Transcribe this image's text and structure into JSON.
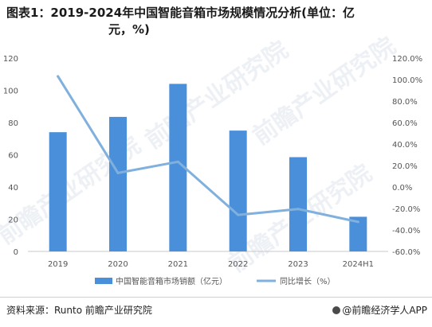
{
  "title_line1": "图表1：2019-2024年中国智能音箱市场规模情况分析(单位：亿",
  "title_line2": "元，%)",
  "watermark": "前瞻产业研究院",
  "source": "资料来源：Runto 前瞻产业研究院",
  "brand": "@前瞻经济学人APP",
  "colors": {
    "bar": "#4a8fd9",
    "line": "#7fb0de",
    "axis": "#c8c8c8",
    "text": "#555555"
  },
  "chart_data": {
    "type": "bar",
    "title": "图表1：2019-2024年中国智能音箱市场规模情况分析(单位：亿元，%)",
    "categories": [
      "2019",
      "2020",
      "2021",
      "2022",
      "2023",
      "2024H1"
    ],
    "y_ticks": [
      "0",
      "20",
      "40",
      "60",
      "80",
      "100",
      "120"
    ],
    "y2_ticks": [
      "-60.0%",
      "-40.0%",
      "-20.0%",
      "0.0%",
      "20.0%",
      "40.0%",
      "60.0%",
      "80.0%",
      "100.0%",
      "120.0%"
    ],
    "ylim": [
      0,
      120
    ],
    "y2lim": [
      -60,
      120
    ],
    "series": [
      {
        "name": "中国智能音箱市场销额（亿元）",
        "type": "bar",
        "axis": "left",
        "values": [
          74,
          83.5,
          104,
          75,
          58.5,
          21.5
        ]
      },
      {
        "name": "同比增长（%）",
        "type": "line",
        "axis": "right",
        "values": [
          103,
          13,
          23.5,
          -26,
          -20.5,
          -32.5
        ]
      }
    ],
    "legend_position": "bottom",
    "grid": false
  }
}
